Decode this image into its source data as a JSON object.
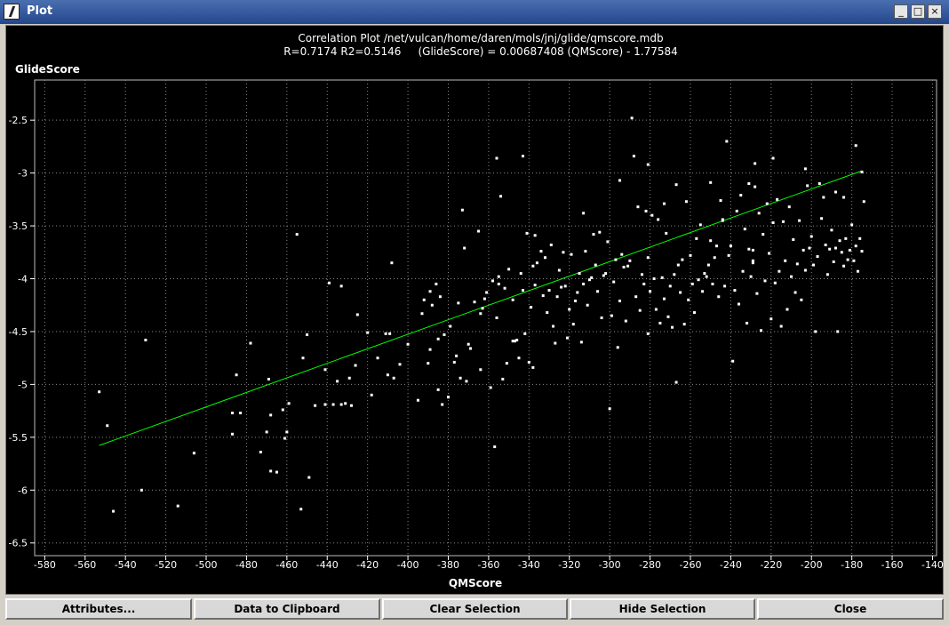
{
  "window": {
    "title": "Plot"
  },
  "titlebar_controls": {
    "minimize": "_",
    "maximize": "□",
    "close": "×"
  },
  "buttons": {
    "attributes": "Attributes...",
    "clipboard": "Data to Clipboard",
    "clear": "Clear Selection",
    "hide": "Hide Selection",
    "close": "Close"
  },
  "colors": {
    "background": "#000000",
    "points": "#ffffff",
    "fit_line": "#00ff00",
    "grid": "#8a8a8a"
  },
  "chart_data": {
    "type": "scatter",
    "title": "Correlation Plot /net/vulcan/home/daren/mols/jnj/glide/qmscore.mdb",
    "subtitle": "R=0.7174 R2=0.5146     (GlideScore) = 0.00687408 (QMScore) - 1.77584",
    "xlabel": "QMScore",
    "ylabel": "GlideScore",
    "xlim": [
      -585,
      -138
    ],
    "ylim": [
      -6.62,
      -2.12
    ],
    "grid": true,
    "x_ticks": [
      -580,
      -560,
      -540,
      -520,
      -500,
      -480,
      -460,
      -440,
      -420,
      -400,
      -380,
      -360,
      -340,
      -320,
      -300,
      -280,
      -260,
      -240,
      -220,
      -200,
      -180,
      -160,
      -140
    ],
    "y_ticks": [
      -2.5,
      -3,
      -3.5,
      -4,
      -4.5,
      -5,
      -5.5,
      -6,
      -6.5
    ],
    "fit_line": {
      "slope": 0.00687408,
      "intercept": -1.77584,
      "x_start": -553,
      "x_end": -175
    },
    "points": [
      [
        -553,
        -5.07
      ],
      [
        -549,
        -5.39
      ],
      [
        -546,
        -6.2
      ],
      [
        -532,
        -6.0
      ],
      [
        -530,
        -4.58
      ],
      [
        -514,
        -6.15
      ],
      [
        -506,
        -5.65
      ],
      [
        -487,
        -5.27
      ],
      [
        -487,
        -5.47
      ],
      [
        -485,
        -4.91
      ],
      [
        -483,
        -5.27
      ],
      [
        -478,
        -4.61
      ],
      [
        -473,
        -5.64
      ],
      [
        -470,
        -5.45
      ],
      [
        -469,
        -4.95
      ],
      [
        -468,
        -5.82
      ],
      [
        -468,
        -5.29
      ],
      [
        -465,
        -5.83
      ],
      [
        -462,
        -5.24
      ],
      [
        -461,
        -5.51
      ],
      [
        -460,
        -5.45
      ],
      [
        -459,
        -5.18
      ],
      [
        -455,
        -3.58
      ],
      [
        -453,
        -6.18
      ],
      [
        -452,
        -4.75
      ],
      [
        -450,
        -4.53
      ],
      [
        -449,
        -5.88
      ],
      [
        -446,
        -5.2
      ],
      [
        -441,
        -5.19
      ],
      [
        -441,
        -4.86
      ],
      [
        -439,
        -4.04
      ],
      [
        -437,
        -5.19
      ],
      [
        -435,
        -4.97
      ],
      [
        -433,
        -5.19
      ],
      [
        -433,
        -4.07
      ],
      [
        -431,
        -5.18
      ],
      [
        -429,
        -4.94
      ],
      [
        -428,
        -5.2
      ],
      [
        -426,
        -4.82
      ],
      [
        -425,
        -4.34
      ],
      [
        -420,
        -4.51
      ],
      [
        -418,
        -5.1
      ],
      [
        -415,
        -4.75
      ],
      [
        -411,
        -4.52
      ],
      [
        -410,
        -4.91
      ],
      [
        -409,
        -4.52
      ],
      [
        -408,
        -3.85
      ],
      [
        -407,
        -4.94
      ],
      [
        -404,
        -4.81
      ],
      [
        -400,
        -4.62
      ],
      [
        -395,
        -5.15
      ],
      [
        -393,
        -4.33
      ],
      [
        -392,
        -4.2
      ],
      [
        -390,
        -4.8
      ],
      [
        -389,
        -4.12
      ],
      [
        -389,
        -4.67
      ],
      [
        -388,
        -4.25
      ],
      [
        -386,
        -4.05
      ],
      [
        -385,
        -4.57
      ],
      [
        -385,
        -5.05
      ],
      [
        -384,
        -4.17
      ],
      [
        -383,
        -5.19
      ],
      [
        -382,
        -4.53
      ],
      [
        -380,
        -5.12
      ],
      [
        -379,
        -4.45
      ],
      [
        -377,
        -4.79
      ],
      [
        -376,
        -4.73
      ],
      [
        -375,
        -4.23
      ],
      [
        -374,
        -4.94
      ],
      [
        -373,
        -3.35
      ],
      [
        -372,
        -3.71
      ],
      [
        -371,
        -4.97
      ],
      [
        -370,
        -4.62
      ],
      [
        -369,
        -4.66
      ],
      [
        -367,
        -4.22
      ],
      [
        -365,
        -3.55
      ],
      [
        -364,
        -4.33
      ],
      [
        -364,
        -4.86
      ],
      [
        -363,
        -4.28
      ],
      [
        -362,
        -4.19
      ],
      [
        -361,
        -4.13
      ],
      [
        -359,
        -5.03
      ],
      [
        -358,
        -4.02
      ],
      [
        -357,
        -5.59
      ],
      [
        -356,
        -2.86
      ],
      [
        -356,
        -4.37
      ],
      [
        -355,
        -3.98
      ],
      [
        -355,
        -4.05
      ],
      [
        -354,
        -3.22
      ],
      [
        -353,
        -4.95
      ],
      [
        -352,
        -4.09
      ],
      [
        -351,
        -4.8
      ],
      [
        -350,
        -3.91
      ],
      [
        -348,
        -4.2
      ],
      [
        -348,
        -4.59
      ],
      [
        -347,
        -4.59
      ],
      [
        -346,
        -4.58
      ],
      [
        -345,
        -4.75
      ],
      [
        -344,
        -3.95
      ],
      [
        -343,
        -4.11
      ],
      [
        -343,
        -2.84
      ],
      [
        -342,
        -4.52
      ],
      [
        -341,
        -3.57
      ],
      [
        -340,
        -4.79
      ],
      [
        -339,
        -4.27
      ],
      [
        -338,
        -4.84
      ],
      [
        -338,
        -3.88
      ],
      [
        -337,
        -4.06
      ],
      [
        -337,
        -3.59
      ],
      [
        -336,
        -3.85
      ],
      [
        -334,
        -3.74
      ],
      [
        -333,
        -4.16
      ],
      [
        -332,
        -3.8
      ],
      [
        -331,
        -4.32
      ],
      [
        -330,
        -4.11
      ],
      [
        -329,
        -3.68
      ],
      [
        -328,
        -4.45
      ],
      [
        -327,
        -4.61
      ],
      [
        -326,
        -4.17
      ],
      [
        -325,
        -3.92
      ],
      [
        -324,
        -4.08
      ],
      [
        -323,
        -3.75
      ],
      [
        -322,
        -4.07
      ],
      [
        -321,
        -4.56
      ],
      [
        -320,
        -4.29
      ],
      [
        -319,
        -3.77
      ],
      [
        -318,
        -4.43
      ],
      [
        -317,
        -4.21
      ],
      [
        -316,
        -4.13
      ],
      [
        -315,
        -3.95
      ],
      [
        -314,
        -4.6
      ],
      [
        -313,
        -3.38
      ],
      [
        -313,
        -4.05
      ],
      [
        -312,
        -3.74
      ],
      [
        -311,
        -4.25
      ],
      [
        -310,
        -4.01
      ],
      [
        -309,
        -3.99
      ],
      [
        -308,
        -3.58
      ],
      [
        -307,
        -3.87
      ],
      [
        -306,
        -4.12
      ],
      [
        -305,
        -3.56
      ],
      [
        -304,
        -4.37
      ],
      [
        -303,
        -3.97
      ],
      [
        -302,
        -3.95
      ],
      [
        -301,
        -3.65
      ],
      [
        -300,
        -5.23
      ],
      [
        -299,
        -4.35
      ],
      [
        -298,
        -4.03
      ],
      [
        -297,
        -3.82
      ],
      [
        -296,
        -4.65
      ],
      [
        -295,
        -4.21
      ],
      [
        -294,
        -3.77
      ],
      [
        -293,
        -3.89
      ],
      [
        -292,
        -4.4
      ],
      [
        -291,
        -3.88
      ],
      [
        -290,
        -3.83
      ],
      [
        -289,
        -2.48
      ],
      [
        -288,
        -2.84
      ],
      [
        -287,
        -4.17
      ],
      [
        -286,
        -3.32
      ],
      [
        -285,
        -4.3
      ],
      [
        -284,
        -3.96
      ],
      [
        -283,
        -4.05
      ],
      [
        -282,
        -3.36
      ],
      [
        -281,
        -3.8
      ],
      [
        -281,
        -4.52
      ],
      [
        -280,
        -4.12
      ],
      [
        -279,
        -3.4
      ],
      [
        -278,
        -4.0
      ],
      [
        -277,
        -4.29
      ],
      [
        -276,
        -3.44
      ],
      [
        -275,
        -4.42
      ],
      [
        -274,
        -3.99
      ],
      [
        -273,
        -4.19
      ],
      [
        -272,
        -3.57
      ],
      [
        -271,
        -4.36
      ],
      [
        -270,
        -4.07
      ],
      [
        -269,
        -4.46
      ],
      [
        -268,
        -3.96
      ],
      [
        -267,
        -4.98
      ],
      [
        -266,
        -3.87
      ],
      [
        -265,
        -4.13
      ],
      [
        -264,
        -3.82
      ],
      [
        -263,
        -4.43
      ],
      [
        -262,
        -3.27
      ],
      [
        -261,
        -4.2
      ],
      [
        -260,
        -3.78
      ],
      [
        -259,
        -4.05
      ],
      [
        -258,
        -4.32
      ],
      [
        -257,
        -3.62
      ],
      [
        -256,
        -4.01
      ],
      [
        -255,
        -3.49
      ],
      [
        -254,
        -4.12
      ],
      [
        -253,
        -3.95
      ],
      [
        -252,
        -3.98
      ],
      [
        -251,
        -3.87
      ],
      [
        -250,
        -3.64
      ],
      [
        -249,
        -4.05
      ],
      [
        -248,
        -3.8
      ],
      [
        -247,
        -3.69
      ],
      [
        -246,
        -4.17
      ],
      [
        -245,
        -3.26
      ],
      [
        -244,
        -3.45
      ],
      [
        -243,
        -4.07
      ],
      [
        -242,
        -2.7
      ],
      [
        -241,
        -3.78
      ],
      [
        -240,
        -3.69
      ],
      [
        -239,
        -4.78
      ],
      [
        -238,
        -4.11
      ],
      [
        -237,
        -3.36
      ],
      [
        -236,
        -4.24
      ],
      [
        -235,
        -3.21
      ],
      [
        -234,
        -3.93
      ],
      [
        -233,
        -3.53
      ],
      [
        -232,
        -4.42
      ],
      [
        -231,
        -3.72
      ],
      [
        -230,
        -3.98
      ],
      [
        -229,
        -3.85
      ],
      [
        -228,
        -2.91
      ],
      [
        -227,
        -4.14
      ],
      [
        -226,
        -3.38
      ],
      [
        -225,
        -4.49
      ],
      [
        -224,
        -3.58
      ],
      [
        -223,
        -4.02
      ],
      [
        -222,
        -3.29
      ],
      [
        -221,
        -3.76
      ],
      [
        -220,
        -4.38
      ],
      [
        -219,
        -3.47
      ],
      [
        -218,
        -4.04
      ],
      [
        -217,
        -3.25
      ],
      [
        -216,
        -3.93
      ],
      [
        -215,
        -4.45
      ],
      [
        -214,
        -3.46
      ],
      [
        -213,
        -3.83
      ],
      [
        -212,
        -4.29
      ],
      [
        -211,
        -3.32
      ],
      [
        -210,
        -3.98
      ],
      [
        -209,
        -3.63
      ],
      [
        -208,
        -4.13
      ],
      [
        -207,
        -3.86
      ],
      [
        -206,
        -3.45
      ],
      [
        -205,
        -4.2
      ],
      [
        -204,
        -3.73
      ],
      [
        -203,
        -3.92
      ],
      [
        -202,
        -3.12
      ],
      [
        -201,
        -3.71
      ],
      [
        -200,
        -3.6
      ],
      [
        -199,
        -3.87
      ],
      [
        -198,
        -4.5
      ],
      [
        -197,
        -3.79
      ],
      [
        -196,
        -3.1
      ],
      [
        -195,
        -3.43
      ],
      [
        -194,
        -3.23
      ],
      [
        -193,
        -3.68
      ],
      [
        -192,
        -3.96
      ],
      [
        -191,
        -3.72
      ],
      [
        -190,
        -3.54
      ],
      [
        -189,
        -3.84
      ],
      [
        -188,
        -3.71
      ],
      [
        -187,
        -4.5
      ],
      [
        -186,
        -3.64
      ],
      [
        -185,
        -3.75
      ],
      [
        -184,
        -3.88
      ],
      [
        -183,
        -3.62
      ],
      [
        -182,
        -3.82
      ],
      [
        -181,
        -3.73
      ],
      [
        -180,
        -3.49
      ],
      [
        -179,
        -3.83
      ],
      [
        -178,
        -3.69
      ],
      [
        -177,
        -3.93
      ],
      [
        -176,
        -3.62
      ],
      [
        -175,
        -3.74
      ],
      [
        -174,
        -3.27
      ],
      [
        -231,
        -3.1
      ],
      [
        -228,
        -3.13
      ],
      [
        -219,
        -2.86
      ],
      [
        -203,
        -2.96
      ],
      [
        -188,
        -3.18
      ],
      [
        -184,
        -3.23
      ],
      [
        -178,
        -2.74
      ],
      [
        -175,
        -2.99
      ],
      [
        -229,
        -3.73
      ],
      [
        -229,
        -3.83
      ],
      [
        -244,
        -3.44
      ],
      [
        -250,
        -3.09
      ],
      [
        -267,
        -3.11
      ],
      [
        -273,
        -3.29
      ],
      [
        -281,
        -2.92
      ],
      [
        -295,
        -3.07
      ]
    ]
  }
}
